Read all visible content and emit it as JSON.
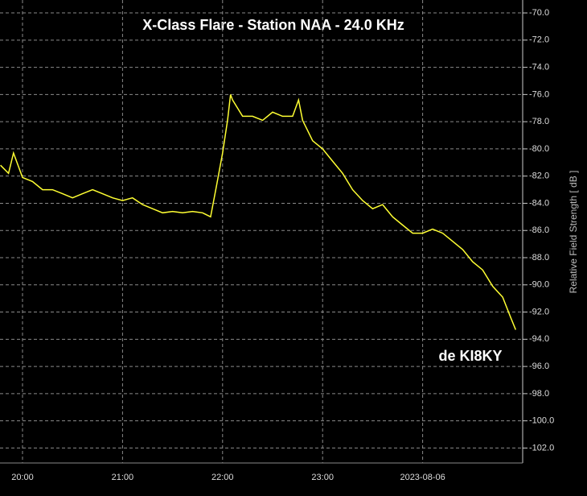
{
  "chart_data": {
    "type": "line",
    "title": "X-Class Flare - Station NAA - 24.0 KHz",
    "annotation": "de KI8KY",
    "y_label": "Relative Field Strength [ dB ]",
    "x": [
      19.78,
      19.86,
      19.91,
      20.0,
      20.1,
      20.2,
      20.3,
      20.4,
      20.5,
      20.6,
      20.7,
      20.8,
      20.9,
      21.0,
      21.1,
      21.2,
      21.3,
      21.4,
      21.5,
      21.6,
      21.7,
      21.8,
      21.88,
      21.94,
      22.0,
      22.05,
      22.08,
      22.1,
      22.2,
      22.3,
      22.4,
      22.5,
      22.6,
      22.7,
      22.76,
      22.8,
      22.9,
      23.0,
      23.1,
      23.2,
      23.3,
      23.4,
      23.5,
      23.6,
      23.7,
      23.8,
      23.9,
      24.0,
      24.1,
      24.2,
      24.3,
      24.4,
      24.5,
      24.6,
      24.7,
      24.8,
      24.88,
      24.93
    ],
    "series": [
      {
        "name": "NAA",
        "color": "#ffff33",
        "values": [
          -81.2,
          -81.8,
          -80.3,
          -82.1,
          -82.4,
          -83.0,
          -83.0,
          -83.3,
          -83.6,
          -83.3,
          -83.0,
          -83.3,
          -83.6,
          -83.8,
          -83.6,
          -84.1,
          -84.4,
          -84.7,
          -84.6,
          -84.7,
          -84.6,
          -84.7,
          -85.0,
          -82.7,
          -80.3,
          -77.9,
          -76.0,
          -76.4,
          -77.6,
          -77.6,
          -77.9,
          -77.3,
          -77.6,
          -77.6,
          -76.4,
          -77.9,
          -79.4,
          -80.0,
          -80.9,
          -81.8,
          -83.0,
          -83.8,
          -84.4,
          -84.1,
          -85.0,
          -85.6,
          -86.2,
          -86.2,
          -85.9,
          -86.2,
          -86.8,
          -87.4,
          -88.3,
          -88.9,
          -90.1,
          -90.9,
          -92.4,
          -93.3
        ]
      }
    ],
    "xlim": [
      19.775,
      25.0
    ],
    "xticks": [
      {
        "value": 20,
        "label": "20:00"
      },
      {
        "value": 21,
        "label": "21:00"
      },
      {
        "value": 22,
        "label": "22:00"
      },
      {
        "value": 23,
        "label": "23:00"
      },
      {
        "value": 24,
        "label": "2023-08-06"
      }
    ],
    "ylim": [
      -103.1,
      -69.05
    ],
    "yticks": [
      {
        "value": -70,
        "label": "-70.0"
      },
      {
        "value": -72,
        "label": "-72.0"
      },
      {
        "value": -74,
        "label": "-74.0"
      },
      {
        "value": -76,
        "label": "-76.0"
      },
      {
        "value": -78,
        "label": "-78.0"
      },
      {
        "value": -80,
        "label": "-80.0"
      },
      {
        "value": -82,
        "label": "-82.0"
      },
      {
        "value": -84,
        "label": "-84.0"
      },
      {
        "value": -86,
        "label": "-86.0"
      },
      {
        "value": -88,
        "label": "-88.0"
      },
      {
        "value": -90,
        "label": "-90.0"
      },
      {
        "value": -92,
        "label": "-92.0"
      },
      {
        "value": -94,
        "label": "-94.0"
      },
      {
        "value": -96,
        "label": "-96.0"
      },
      {
        "value": -98,
        "label": "-98.0"
      },
      {
        "value": -100,
        "label": "-100.0"
      },
      {
        "value": -102,
        "label": "-102.0"
      }
    ],
    "grid": true
  }
}
